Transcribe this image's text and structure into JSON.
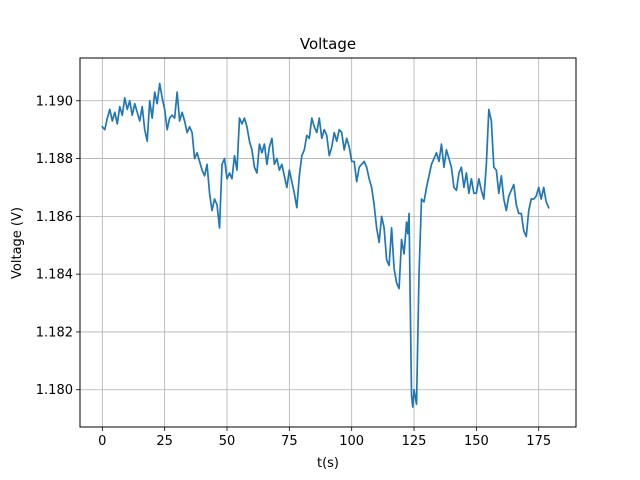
{
  "chart_data": {
    "type": "line",
    "title": "Voltage",
    "xlabel": "t(s)",
    "ylabel": "Voltage (V)",
    "xlim": [
      -8.95,
      189.95
    ],
    "ylim": [
      1.17871,
      1.19148
    ],
    "xticks": [
      0,
      25,
      50,
      75,
      100,
      125,
      150,
      175
    ],
    "xtick_labels": [
      "0",
      "25",
      "50",
      "75",
      "100",
      "125",
      "150",
      "175"
    ],
    "yticks": [
      1.18,
      1.182,
      1.184,
      1.186,
      1.188,
      1.19
    ],
    "ytick_labels": [
      "1.180",
      "1.182",
      "1.184",
      "1.186",
      "1.188",
      "1.190"
    ],
    "grid": true,
    "colors": {
      "line": "#1f77b4",
      "grid": "#b0b0b0",
      "axes": "#000000"
    },
    "series": [
      {
        "x": [
          0,
          1,
          2,
          3,
          4,
          5,
          6,
          7,
          8,
          9,
          10,
          11,
          12,
          13,
          14,
          15,
          16,
          17,
          18,
          19,
          20,
          21,
          22,
          23,
          24,
          25,
          26,
          27,
          28,
          29,
          30,
          31,
          32,
          33,
          34,
          35,
          36,
          37,
          38,
          39,
          40,
          41,
          42,
          43,
          44,
          45,
          46,
          47,
          48,
          49,
          50,
          51,
          52,
          53,
          54,
          55,
          56,
          57,
          58,
          59,
          60,
          61,
          62,
          63,
          64,
          65,
          66,
          67,
          68,
          69,
          70,
          71,
          72,
          73,
          74,
          75,
          76,
          77,
          78,
          79,
          80,
          81,
          82,
          83,
          84,
          85,
          86,
          87,
          88,
          89,
          90,
          91,
          92,
          93,
          94,
          95,
          96,
          97,
          98,
          99,
          100,
          101,
          102,
          103,
          104,
          105,
          106,
          107,
          108,
          109,
          110,
          111,
          112,
          113,
          114,
          115,
          116,
          117,
          118,
          119,
          120,
          121,
          122,
          122.5,
          123,
          123.5,
          124,
          124.5,
          125,
          126,
          127,
          128,
          129,
          130,
          131,
          132,
          133,
          134,
          135,
          136,
          137,
          138,
          139,
          140,
          141,
          142,
          143,
          144,
          145,
          146,
          147,
          148,
          149,
          150,
          151,
          152,
          153,
          154,
          155,
          156,
          157,
          158,
          159,
          160,
          161,
          162,
          163,
          164,
          165,
          166,
          167,
          168,
          169,
          170,
          171,
          172,
          173,
          174,
          175,
          176,
          177,
          178,
          179
        ],
        "y": [
          1.1891,
          1.189,
          1.1894,
          1.1897,
          1.1893,
          1.1896,
          1.1892,
          1.1898,
          1.1895,
          1.1901,
          1.1897,
          1.19,
          1.1895,
          1.1899,
          1.1896,
          1.1893,
          1.1898,
          1.189,
          1.1886,
          1.19,
          1.1894,
          1.1903,
          1.1899,
          1.1906,
          1.1901,
          1.1897,
          1.189,
          1.1894,
          1.1895,
          1.1894,
          1.1903,
          1.1893,
          1.1896,
          1.1893,
          1.1889,
          1.1891,
          1.1889,
          1.188,
          1.1882,
          1.1879,
          1.1876,
          1.1874,
          1.1878,
          1.1868,
          1.1862,
          1.1866,
          1.1864,
          1.1856,
          1.1878,
          1.188,
          1.1873,
          1.1875,
          1.1873,
          1.1881,
          1.1876,
          1.1894,
          1.1892,
          1.1894,
          1.1891,
          1.1886,
          1.1883,
          1.1877,
          1.1875,
          1.1885,
          1.1882,
          1.1885,
          1.1878,
          1.1884,
          1.1887,
          1.1878,
          1.188,
          1.1876,
          1.1878,
          1.1874,
          1.187,
          1.1876,
          1.1872,
          1.1868,
          1.1863,
          1.1874,
          1.1881,
          1.1883,
          1.1888,
          1.1887,
          1.1894,
          1.1891,
          1.1889,
          1.1894,
          1.1887,
          1.189,
          1.1888,
          1.1881,
          1.1884,
          1.1889,
          1.1886,
          1.189,
          1.1889,
          1.1883,
          1.1887,
          1.1884,
          1.1879,
          1.1879,
          1.1872,
          1.1877,
          1.1878,
          1.1879,
          1.1877,
          1.1873,
          1.187,
          1.1864,
          1.1856,
          1.1851,
          1.186,
          1.1856,
          1.1845,
          1.1843,
          1.1856,
          1.1842,
          1.1837,
          1.1835,
          1.1852,
          1.1847,
          1.1858,
          1.1854,
          1.1861,
          1.1829,
          1.1798,
          1.1794,
          1.18,
          1.1795,
          1.184,
          1.1866,
          1.1865,
          1.187,
          1.1874,
          1.1878,
          1.188,
          1.1882,
          1.1879,
          1.1885,
          1.1877,
          1.1883,
          1.188,
          1.1877,
          1.187,
          1.1869,
          1.1875,
          1.1877,
          1.187,
          1.1875,
          1.1868,
          1.1873,
          1.1868,
          1.1868,
          1.1873,
          1.1869,
          1.1866,
          1.1878,
          1.1897,
          1.1893,
          1.1877,
          1.1876,
          1.1868,
          1.1874,
          1.1866,
          1.1862,
          1.1867,
          1.1869,
          1.1871,
          1.1864,
          1.1861,
          1.1861,
          1.1855,
          1.1853,
          1.1862,
          1.1866,
          1.1866,
          1.1867,
          1.187,
          1.1866,
          1.187,
          1.1865,
          1.1863
        ]
      }
    ]
  }
}
